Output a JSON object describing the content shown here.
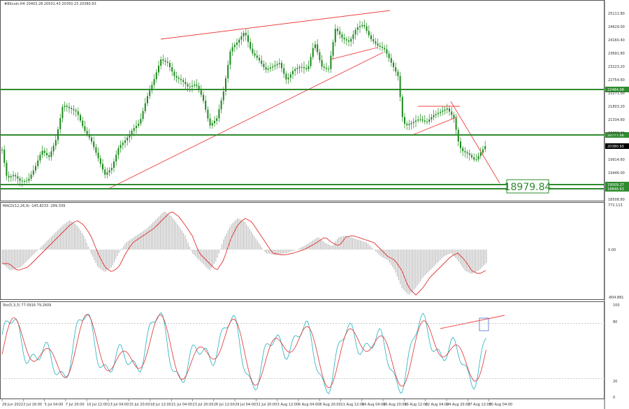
{
  "chart_data": [
    {
      "type": "candlestick",
      "title": "#Bitcoin,H4  20403.28 20501.43 20350.23 20380.93",
      "price_levels": [
        {
          "value": 22484.08,
          "label": "22484.08",
          "color": "#2e8b2e"
        },
        {
          "value": 20777.06,
          "label": "20777.06",
          "color": "#2e8b2e"
        },
        {
          "value": 19009.27,
          "label": "19009.27",
          "color": "#2e8b2e"
        },
        {
          "value": 18846.63,
          "label": "18846.63",
          "color": "#2e8b2e"
        }
      ],
      "current_price": "20380.93",
      "target_label": "18979.84",
      "y_ticks": [
        "25111.80",
        "24629.00",
        "24160.40",
        "23691.80",
        "23223.20",
        "22754.60",
        "22271.00",
        "21803.20",
        "21334.60",
        "20866.00",
        "19914.60",
        "19446.00",
        "18508.80"
      ],
      "ylim": [
        18508.8,
        25300
      ]
    },
    {
      "type": "histogram",
      "title": "MACD(12,26,9) -145.8233 -289.339",
      "y_ticks": [
        "772.113",
        "0.00",
        "-804.881"
      ]
    },
    {
      "type": "line",
      "title": "Sto(5,3,3) 77.0916 79.2609",
      "y_ticks": [
        "100",
        "80",
        "20",
        "0"
      ],
      "ylim": [
        0,
        100
      ]
    }
  ],
  "x_ticks": [
    "29 Jun 2022",
    "2 Jul 16:00",
    "5 Jul 04:00",
    "7 Jul 20:00",
    "10 Jul 12:00",
    "13 Jul 04:00",
    "15 Jul 20:00",
    "18 Jul 12:00",
    "21 Jul 04:00",
    "23 Jul 20:00",
    "26 Jul 12:00",
    "29 Jul 04:00",
    "31 Jul 20:00",
    "3 Aug 12:00",
    "6 Aug 04:00",
    "8 Aug 20:00",
    "11 Aug 12:00",
    "14 Aug 04:00",
    "16 Aug 20:00",
    "19 Aug 12:00",
    "22 Aug 04:00",
    "24 Aug 20:00",
    "27 Aug 12:00",
    "30 Aug 04:00"
  ],
  "colors": {
    "grid_border": "#000000",
    "level_line": "#2e8b2e",
    "trend_line": "#f04040",
    "candle": "#1a8a1a",
    "macd_hist": "#b0b0b0",
    "signal": "#e03030",
    "sto_main": "#20b2c0",
    "sto_signal": "#e03030"
  }
}
